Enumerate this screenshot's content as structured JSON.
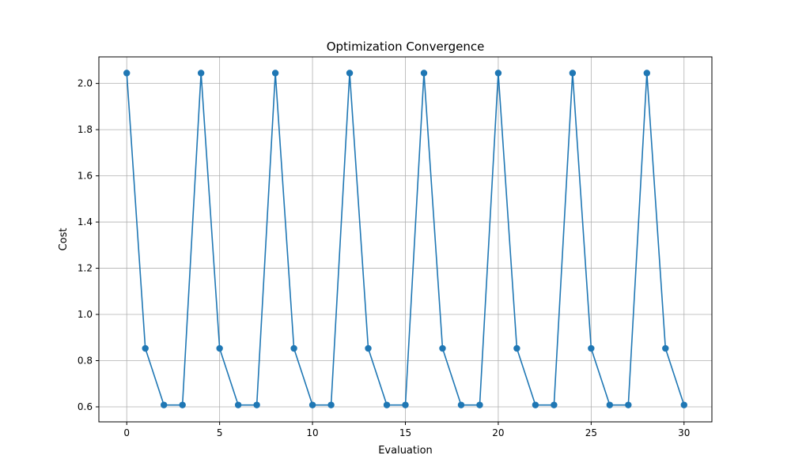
{
  "chart_data": {
    "type": "line",
    "title": "Optimization Convergence",
    "xlabel": "Evaluation",
    "ylabel": "Cost",
    "xlim": [
      -1.5,
      31.5
    ],
    "ylim": [
      0.535,
      2.115
    ],
    "xticks": [
      0,
      5,
      10,
      15,
      20,
      25,
      30
    ],
    "xtick_labels": [
      "0",
      "5",
      "10",
      "15",
      "20",
      "25",
      "30"
    ],
    "yticks": [
      0.6,
      0.8,
      1.0,
      1.2,
      1.4,
      1.6,
      1.8,
      2.0
    ],
    "ytick_labels": [
      "0.6",
      "0.8",
      "1.0",
      "1.2",
      "1.4",
      "1.6",
      "1.8",
      "2.0"
    ],
    "grid": true,
    "series": [
      {
        "color": "#1f77b4",
        "marker": "circle",
        "x": [
          0,
          1,
          2,
          3,
          4,
          5,
          6,
          7,
          8,
          9,
          10,
          11,
          12,
          13,
          14,
          15,
          16,
          17,
          18,
          19,
          20,
          21,
          22,
          23,
          24,
          25,
          26,
          27,
          28,
          29,
          30
        ],
        "y": [
          2.045,
          0.853,
          0.608,
          0.608,
          2.045,
          0.853,
          0.608,
          0.608,
          2.045,
          0.853,
          0.608,
          0.608,
          2.045,
          0.853,
          0.608,
          0.608,
          2.045,
          0.853,
          0.608,
          0.608,
          2.045,
          0.853,
          0.608,
          0.608,
          2.045,
          0.853,
          0.608,
          0.608,
          2.045,
          0.853,
          0.608
        ]
      }
    ]
  }
}
